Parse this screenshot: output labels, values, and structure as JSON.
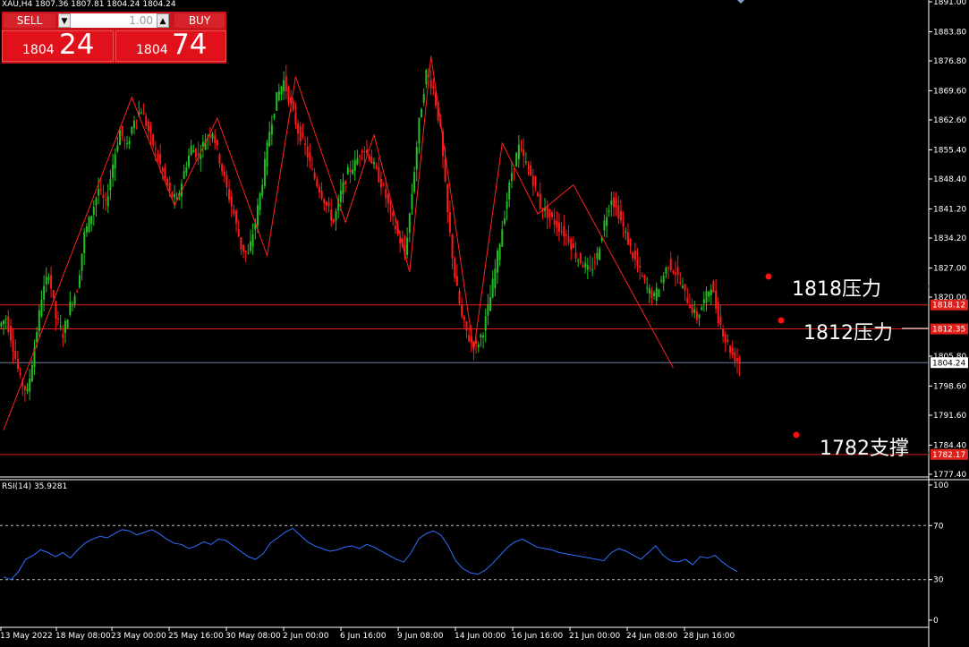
{
  "header": {
    "info": "XAU,H4  1807.36 1807.81 1804.24 1804.24"
  },
  "trade_panel": {
    "sell_label": "SELL",
    "buy_label": "BUY",
    "lot_value": "1.00",
    "sell_price_small": "1804",
    "sell_price_big": "24",
    "buy_price_small": "1804",
    "buy_price_big": "74"
  },
  "annotations": [
    {
      "text": "1818压力"
    },
    {
      "text": "1812压力"
    },
    {
      "text": "1782支撑"
    }
  ],
  "rsi": {
    "label": "RSI(14) 35.9281"
  },
  "colors": {
    "bull": "#22c022",
    "bear": "#ff1a1a",
    "level_line": "#e0201a",
    "current_line": "#7080a0",
    "rsi_line": "#2f6fff",
    "zigzag": "#ff2020",
    "grid_text": "#ffffff"
  },
  "chart_data": {
    "type": "candlestick",
    "symbol": "XAU",
    "timeframe": "H4",
    "y_ticks": [
      "1891.00",
      "1883.80",
      "1876.80",
      "1869.60",
      "1862.60",
      "1855.40",
      "1848.40",
      "1841.20",
      "1834.20",
      "1827.00",
      "1820.00",
      "1805.80",
      "1798.60",
      "1791.60",
      "1784.40",
      "1777.40"
    ],
    "ylim": [
      1775,
      1893
    ],
    "x_ticks": [
      "13 May 2022",
      "18 May 08:00",
      "23 May 00:00",
      "25 May 16:00",
      "30 May 08:00",
      "2 Jun 00:00",
      "6 Jun 16:00",
      "9 Jun 08:00",
      "14 Jun 00:00",
      "16 Jun 16:00",
      "21 Jun 00:00",
      "24 Jun 08:00",
      "28 Jun 16:00"
    ],
    "horizontal_levels": [
      {
        "value": 1818.12,
        "label": "1818.12",
        "style": "level"
      },
      {
        "value": 1812.35,
        "label": "1812.35",
        "style": "level"
      },
      {
        "value": 1804.24,
        "label": "1804.24",
        "style": "current"
      },
      {
        "value": 1782.17,
        "label": "1782.17",
        "style": "level"
      }
    ],
    "close_path": [
      1815,
      1808,
      1800,
      1797,
      1808,
      1820,
      1826,
      1815,
      1811,
      1818,
      1822,
      1835,
      1840,
      1846,
      1842,
      1852,
      1860,
      1856,
      1863,
      1865,
      1860,
      1855,
      1850,
      1845,
      1843,
      1850,
      1856,
      1854,
      1858,
      1860,
      1853,
      1846,
      1840,
      1832,
      1830,
      1838,
      1848,
      1860,
      1868,
      1872,
      1866,
      1860,
      1856,
      1850,
      1846,
      1842,
      1838,
      1845,
      1850,
      1852,
      1856,
      1854,
      1850,
      1846,
      1840,
      1835,
      1830,
      1845,
      1862,
      1874,
      1870,
      1860,
      1840,
      1825,
      1815,
      1810,
      1808,
      1812,
      1820,
      1830,
      1840,
      1850,
      1856,
      1852,
      1848,
      1842,
      1840,
      1838,
      1836,
      1834,
      1830,
      1828,
      1826,
      1830,
      1838,
      1844,
      1840,
      1835,
      1830,
      1826,
      1822,
      1820,
      1824,
      1828,
      1826,
      1822,
      1818,
      1815,
      1819,
      1823,
      1815,
      1810,
      1806,
      1804.24
    ],
    "zigzag": [
      {
        "i": 0,
        "v": 1788
      },
      {
        "i": 18,
        "v": 1868
      },
      {
        "i": 24,
        "v": 1842
      },
      {
        "i": 30,
        "v": 1863
      },
      {
        "i": 37,
        "v": 1830
      },
      {
        "i": 41,
        "v": 1873
      },
      {
        "i": 48,
        "v": 1838
      },
      {
        "i": 52,
        "v": 1859
      },
      {
        "i": 57,
        "v": 1826
      },
      {
        "i": 60,
        "v": 1878
      },
      {
        "i": 66,
        "v": 1807
      },
      {
        "i": 70,
        "v": 1857
      },
      {
        "i": 75,
        "v": 1840
      },
      {
        "i": 80,
        "v": 1847
      },
      {
        "i": 94,
        "v": 1803
      }
    ],
    "rsi_ylim": [
      0,
      100
    ],
    "rsi_levels": [
      70,
      30
    ],
    "rsi_ticks": [
      "100",
      "70",
      "30",
      "0"
    ],
    "rsi_values": [
      32,
      30,
      36,
      45,
      48,
      52,
      50,
      47,
      50,
      46,
      52,
      57,
      60,
      62,
      61,
      64,
      67,
      66,
      63,
      65,
      67,
      64,
      60,
      57,
      56,
      53,
      55,
      58,
      56,
      60,
      59,
      55,
      51,
      47,
      45,
      49,
      57,
      61,
      65,
      68,
      63,
      58,
      55,
      53,
      51,
      52,
      54,
      55,
      53,
      56,
      54,
      51,
      48,
      45,
      43,
      50,
      60,
      64,
      66,
      63,
      55,
      44,
      38,
      35,
      34,
      37,
      42,
      48,
      54,
      58,
      60,
      57,
      54,
      53,
      52,
      50,
      49,
      48,
      47,
      46,
      45,
      44,
      50,
      53,
      51,
      48,
      45,
      50,
      55,
      48,
      44,
      43,
      45,
      41,
      47,
      46,
      48,
      43,
      39,
      36
    ]
  }
}
